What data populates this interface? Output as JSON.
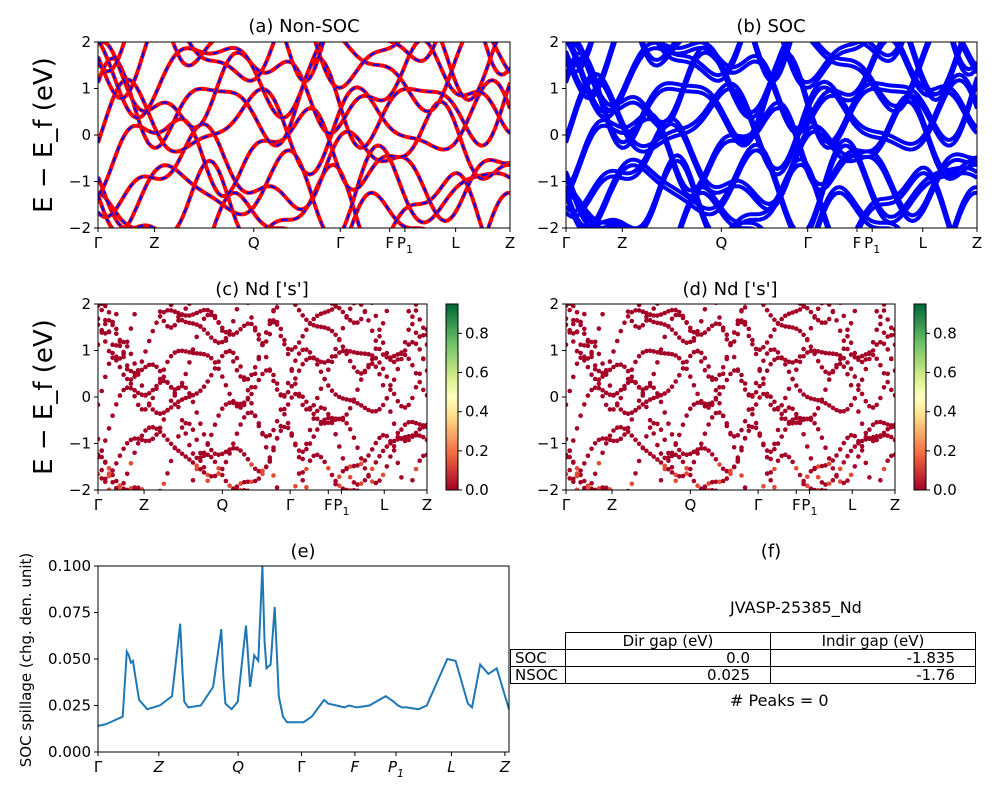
{
  "panels": {
    "a": {
      "title": "(a) Non-SOC"
    },
    "b": {
      "title": "(b) SOC"
    },
    "c": {
      "title": "(c)  Nd ['s']"
    },
    "d": {
      "title": "(d) Nd ['s']"
    },
    "e": {
      "title": "(e)"
    },
    "f": {
      "title": "(f)"
    }
  },
  "band_axis": {
    "ylabel": "E − E_f (eV)",
    "yticks": [
      "2",
      "1",
      "0",
      "−1",
      "−2"
    ],
    "kpoints": [
      "Γ",
      "Z",
      "Q",
      "Γ",
      "F",
      "P1",
      "L",
      "Z"
    ]
  },
  "colorbar": {
    "ticks": [
      "0.8",
      "0.6",
      "0.4",
      "0.2",
      "0.0"
    ],
    "colormap": "RdYlGn"
  },
  "spillage": {
    "ylabel": "SOC spillage (chg. den. unit)",
    "yticks": [
      "0.100",
      "0.075",
      "0.050",
      "0.025",
      "0.000"
    ],
    "kpoints": [
      "Γ",
      "Z",
      "Q",
      "Γ",
      "F",
      "P1",
      "L",
      "Z"
    ]
  },
  "info": {
    "material": "JVASP-25385_Nd",
    "headers": [
      "Dir gap (eV)",
      "Indir gap (eV)"
    ],
    "rows": [
      {
        "label": "SOC",
        "dir": "0.0",
        "indir": "-1.835"
      },
      {
        "label": "NSOC",
        "dir": "0.025",
        "indir": "-1.76"
      }
    ],
    "peaks": "# Peaks = 0"
  },
  "colors": {
    "nonsoc_up": "#ff0000",
    "nonsoc_dn": "#0000ff",
    "soc": "#0000ff",
    "spillage": "#1f77b4"
  },
  "chart_data": [
    {
      "type": "line",
      "panel": "a",
      "title": "(a) Non-SOC",
      "ylabel": "E − E_f (eV)",
      "ylim": [
        -2,
        2
      ],
      "xticks": [
        "Γ",
        "Z",
        "Q",
        "Γ",
        "F",
        "P1",
        "L",
        "Z"
      ],
      "note_values": "band lines estimated"
    },
    {
      "type": "line",
      "panel": "b",
      "title": "(b) SOC",
      "ylim": [
        -2,
        2
      ],
      "xticks": [
        "Γ",
        "Z",
        "Q",
        "Γ",
        "F",
        "P1",
        "L",
        "Z"
      ]
    },
    {
      "type": "scatter",
      "panel": "c",
      "title": "(c)  Nd ['s']",
      "ylabel": "E − E_f (eV)",
      "ylim": [
        -2,
        2
      ],
      "xticks": [
        "Γ",
        "Z",
        "Q",
        "Γ",
        "F",
        "P1",
        "L",
        "Z"
      ],
      "colorbar_range": [
        0.0,
        0.95
      ]
    },
    {
      "type": "scatter",
      "panel": "d",
      "title": "(d) Nd ['s']",
      "ylim": [
        -2,
        2
      ],
      "xticks": [
        "Γ",
        "Z",
        "Q",
        "Γ",
        "F",
        "P1",
        "L",
        "Z"
      ],
      "colorbar_range": [
        0.0,
        0.95
      ]
    },
    {
      "type": "line",
      "panel": "e",
      "title": "(e)",
      "ylabel": "SOC spillage (chg. den. unit)",
      "ylim": [
        0,
        0.1
      ],
      "xticks": [
        "Γ",
        "Z",
        "Q",
        "Γ",
        "F",
        "P1",
        "L",
        "Z"
      ],
      "x": [
        0,
        0.02,
        0.04,
        0.06,
        0.07,
        0.075,
        0.08,
        0.085,
        0.095,
        0.1,
        0.12,
        0.15,
        0.18,
        0.2,
        0.205,
        0.21,
        0.22,
        0.25,
        0.28,
        0.3,
        0.305,
        0.31,
        0.325,
        0.34,
        0.36,
        0.37,
        0.38,
        0.39,
        0.4,
        0.405,
        0.41,
        0.42,
        0.43,
        0.44,
        0.45,
        0.46,
        0.5,
        0.52,
        0.55,
        0.56,
        0.6,
        0.61,
        0.63,
        0.66,
        0.7,
        0.72,
        0.73,
        0.74,
        0.75,
        0.78,
        0.8,
        0.85,
        0.87,
        0.9,
        0.91,
        0.93,
        0.95,
        0.97,
        1.0
      ],
      "y": [
        0.014,
        0.015,
        0.017,
        0.019,
        0.054,
        0.052,
        0.048,
        0.049,
        0.035,
        0.028,
        0.023,
        0.025,
        0.03,
        0.069,
        0.045,
        0.027,
        0.024,
        0.025,
        0.035,
        0.066,
        0.04,
        0.026,
        0.023,
        0.027,
        0.068,
        0.035,
        0.052,
        0.049,
        0.1,
        0.06,
        0.045,
        0.047,
        0.078,
        0.03,
        0.019,
        0.016,
        0.016,
        0.019,
        0.028,
        0.026,
        0.024,
        0.025,
        0.024,
        0.025,
        0.03,
        0.027,
        0.025,
        0.024,
        0.024,
        0.023,
        0.025,
        0.05,
        0.049,
        0.026,
        0.024,
        0.047,
        0.042,
        0.045,
        0.023
      ]
    }
  ]
}
